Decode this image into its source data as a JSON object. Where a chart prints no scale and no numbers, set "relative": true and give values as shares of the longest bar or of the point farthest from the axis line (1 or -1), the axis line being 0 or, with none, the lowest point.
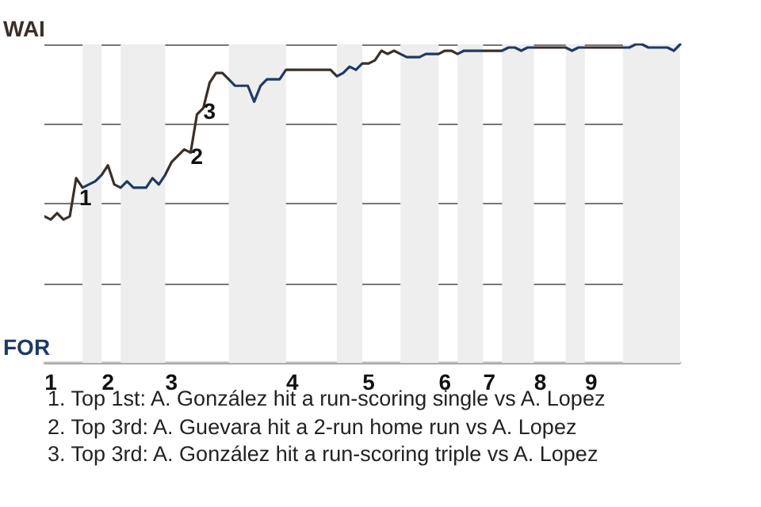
{
  "chart_data": {
    "type": "line",
    "relative": true,
    "categories": [
      null,
      "1",
      null,
      null,
      null,
      null,
      null,
      null,
      null,
      null,
      "2",
      null,
      null,
      null,
      null,
      null,
      null,
      null,
      null,
      null,
      "3",
      null,
      null,
      null,
      null,
      null,
      null,
      null,
      null,
      null,
      null,
      null,
      null,
      null,
      null,
      null,
      null,
      null,
      null,
      "4",
      null,
      null,
      null,
      null,
      null,
      null,
      null,
      null,
      null,
      null,
      null,
      "5",
      null,
      null,
      null,
      null,
      null,
      null,
      null,
      null,
      null,
      null,
      null,
      "6",
      null,
      null,
      null,
      null,
      null,
      null,
      "7",
      null,
      null,
      null,
      null,
      null,
      null,
      null,
      "8",
      null,
      null,
      null,
      null,
      null,
      null,
      null,
      "9",
      null,
      null,
      null,
      null,
      null,
      null,
      null,
      null,
      null,
      null,
      null,
      null,
      null,
      null
    ],
    "marker": "none",
    "line_style": "solid",
    "grid": "y",
    "values": [
      0.46,
      0.45,
      0.47,
      0.45,
      0.46,
      0.58,
      0.55,
      0.56,
      0.57,
      0.59,
      0.62,
      0.56,
      0.55,
      0.57,
      0.55,
      0.55,
      0.55,
      0.58,
      0.56,
      0.59,
      0.63,
      0.65,
      0.67,
      0.66,
      0.78,
      0.8,
      0.88,
      0.91,
      0.91,
      0.89,
      0.87,
      0.87,
      0.87,
      0.82,
      0.87,
      0.89,
      0.89,
      0.89,
      0.92,
      0.92,
      0.92,
      0.92,
      0.92,
      0.92,
      0.92,
      0.92,
      0.9,
      0.91,
      0.93,
      0.92,
      0.94,
      0.94,
      0.95,
      0.98,
      0.97,
      0.98,
      0.97,
      0.96,
      0.96,
      0.96,
      0.97,
      0.97,
      0.97,
      0.98,
      0.98,
      0.97,
      0.98,
      0.98,
      0.98,
      0.98,
      0.98,
      0.98,
      0.98,
      0.99,
      0.99,
      0.98,
      0.99,
      0.99,
      0.99,
      0.99,
      0.99,
      0.99,
      0.99,
      0.98,
      0.99,
      0.99,
      0.99,
      0.99,
      0.99,
      0.99,
      0.99,
      0.99,
      0.99,
      1,
      1,
      0.99,
      0.99,
      0.99,
      0.99,
      0.98,
      1
    ],
    "colors": [
      "#3b2f2a",
      "#3b2f2a",
      "#3b2f2a",
      "#3b2f2a",
      "#3b2f2a",
      "#3b2f2a",
      "#1f3a63",
      "#1f3a63",
      "#1f3a63",
      "#3b2f2a",
      "#3b2f2a",
      "#3b2f2a",
      "#1f3a63",
      "#1f3a63",
      "#1f3a63",
      "#1f3a63",
      "#1f3a63",
      "#1f3a63",
      "#1f3a63",
      "#3b2f2a",
      "#3b2f2a",
      "#3b2f2a",
      "#3b2f2a",
      "#3b2f2a",
      "#3b2f2a",
      "#3b2f2a",
      "#3b2f2a",
      "#3b2f2a",
      "#3b2f2a",
      "#1f3a63",
      "#1f3a63",
      "#1f3a63",
      "#1f3a63",
      "#1f3a63",
      "#1f3a63",
      "#1f3a63",
      "#1f3a63",
      "#1f3a63",
      "#3b2f2a",
      "#3b2f2a",
      "#3b2f2a",
      "#3b2f2a",
      "#3b2f2a",
      "#3b2f2a",
      "#3b2f2a",
      "#3b2f2a",
      "#1f3a63",
      "#1f3a63",
      "#1f3a63",
      "#1f3a63",
      "#3b2f2a",
      "#3b2f2a",
      "#3b2f2a",
      "#3b2f2a",
      "#3b2f2a",
      "#3b2f2a",
      "#1f3a63",
      "#1f3a63",
      "#1f3a63",
      "#1f3a63",
      "#1f3a63",
      "#1f3a63",
      "#3b2f2a",
      "#3b2f2a",
      "#3b2f2a",
      "#1f3a63",
      "#1f3a63",
      "#1f3a63",
      "#1f3a63",
      "#3b2f2a",
      "#3b2f2a",
      "#3b2f2a",
      "#1f3a63",
      "#1f3a63",
      "#1f3a63",
      "#1f3a63",
      "#1f3a63",
      "#3b2f2a",
      "#3b2f2a",
      "#3b2f2a",
      "#3b2f2a",
      "#3b2f2a",
      "#1f3a63",
      "#1f3a63",
      "#1f3a63",
      "#3b2f2a",
      "#3b2f2a",
      "#3b2f2a",
      "#3b2f2a",
      "#3b2f2a",
      "#3b2f2a",
      "#1f3a63",
      "#1f3a63",
      "#1f3a63",
      "#1f3a63",
      "#1f3a63",
      "#1f3a63",
      "#1f3a63",
      "#1f3a63",
      "#1f3a63",
      "#1f3a63"
    ],
    "annotations": [
      "WAI",
      "FOR",
      {
        "text": "1",
        "y": 0.58
      },
      {
        "text": "2",
        "y": 0.66
      },
      {
        "text": "3",
        "y": 0.8
      },
      "1. Top 1st: A. González hit a run-scoring single vs A. Lopez",
      "2. Top 3rd: A. Guevara hit a 2-run home run vs A. Lopez",
      "3. Top 3rd: A. González hit a run-scoring triple vs A. Lopez"
    ]
  }
}
